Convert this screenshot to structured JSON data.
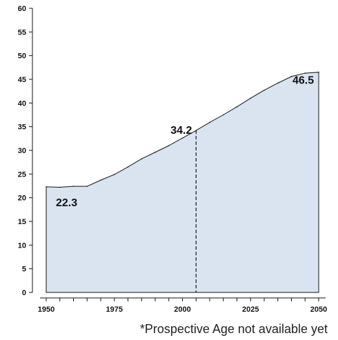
{
  "chart_data": {
    "type": "area",
    "x": [
      1950,
      1955,
      1960,
      1965,
      1970,
      1975,
      1980,
      1985,
      1990,
      1995,
      2000,
      2005,
      2010,
      2015,
      2020,
      2025,
      2030,
      2035,
      2040,
      2045,
      2050
    ],
    "series": [
      {
        "values": [
          22.3,
          22.2,
          22.4,
          22.4,
          23.7,
          24.9,
          26.5,
          28.2,
          29.6,
          31.0,
          32.6,
          34.2,
          35.9,
          37.5,
          39.2,
          41.0,
          42.7,
          44.2,
          45.6,
          46.3,
          46.5
        ]
      }
    ],
    "xlim": [
      1950,
      2050
    ],
    "ylim": [
      0,
      60
    ],
    "xticks": [
      "1950",
      "1975",
      "2000",
      "2025",
      "2050"
    ],
    "yticks": [
      "0",
      "5",
      "10",
      "15",
      "20",
      "25",
      "30",
      "35",
      "40",
      "45",
      "50",
      "55",
      "60"
    ],
    "reference_line_x": 2005,
    "annotations": [
      {
        "text": "22.3",
        "x": 1950,
        "y": 22.3
      },
      {
        "text": "34.2",
        "x": 2005,
        "y": 34.2
      },
      {
        "text": "46.5",
        "x": 2050,
        "y": 46.5
      }
    ],
    "fill_color": "#dae4f1",
    "line_color": "#111111",
    "grid": false
  },
  "footnote": "*Prospective Age not available yet"
}
